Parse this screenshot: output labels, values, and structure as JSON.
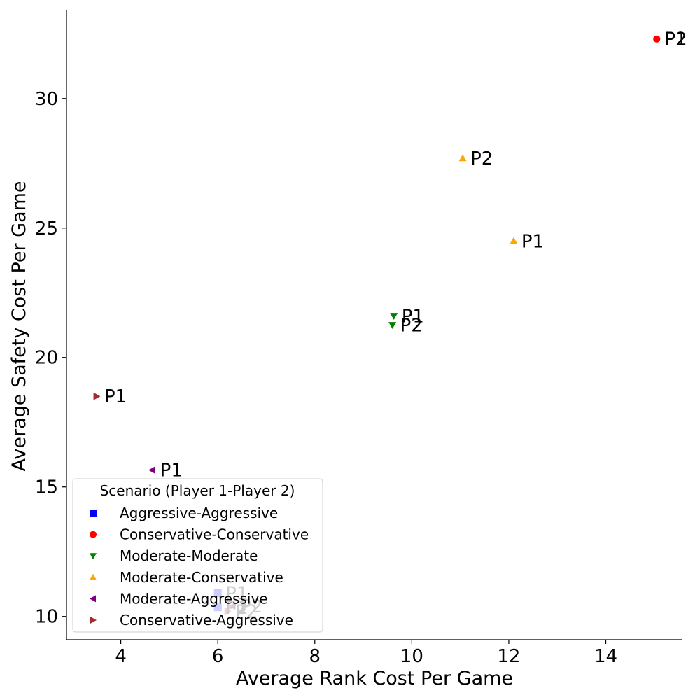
{
  "chart_data": {
    "type": "scatter",
    "xlabel": "Average Rank Cost Per Game",
    "ylabel": "Average Safety Cost Per Game",
    "xlim": [
      2.88,
      15.58
    ],
    "ylim": [
      9.1,
      33.4
    ],
    "xticks": [
      4,
      6,
      8,
      10,
      12,
      14
    ],
    "yticks": [
      10,
      15,
      20,
      25,
      30
    ],
    "xtick_labels": [
      "4",
      "6",
      "8",
      "10",
      "12",
      "14"
    ],
    "ytick_labels": [
      "10",
      "15",
      "20",
      "25",
      "30"
    ],
    "grid": false,
    "legend": {
      "title": "Scenario (Player 1-Player 2)",
      "placement": "lower-left"
    },
    "series": [
      {
        "name": "Aggressive-Aggressive",
        "color": "#0000ff",
        "marker": "square",
        "points": [
          {
            "x": 6.0,
            "y": 10.9,
            "label": "P1"
          },
          {
            "x": 6.0,
            "y": 10.35,
            "label": "P2"
          }
        ]
      },
      {
        "name": "Conservative-Conservative",
        "color": "#ff0000",
        "marker": "circle",
        "points": [
          {
            "x": 15.05,
            "y": 32.3,
            "label": "P1"
          },
          {
            "x": 15.05,
            "y": 32.3,
            "label": "P2"
          }
        ]
      },
      {
        "name": "Moderate-Moderate",
        "color": "#008000",
        "marker": "triangle-down",
        "points": [
          {
            "x": 9.63,
            "y": 21.6,
            "label": "P1"
          },
          {
            "x": 9.6,
            "y": 21.25,
            "label": "P2"
          }
        ]
      },
      {
        "name": "Moderate-Conservative",
        "color": "#ffa500",
        "marker": "triangle-up",
        "points": [
          {
            "x": 12.1,
            "y": 24.5,
            "label": "P1"
          },
          {
            "x": 11.05,
            "y": 27.7,
            "label": "P2"
          }
        ]
      },
      {
        "name": "Moderate-Aggressive",
        "color": "#800080",
        "marker": "triangle-left",
        "points": [
          {
            "x": 4.65,
            "y": 15.65,
            "label": "P1"
          },
          {
            "x": 6.3,
            "y": 10.4,
            "label": "P2"
          }
        ]
      },
      {
        "name": "Conservative-Aggressive",
        "color": "#a52a2a",
        "marker": "triangle-right",
        "points": [
          {
            "x": 3.5,
            "y": 18.5,
            "label": "P1"
          },
          {
            "x": 6.2,
            "y": 10.2,
            "label": "P2"
          }
        ]
      }
    ]
  }
}
